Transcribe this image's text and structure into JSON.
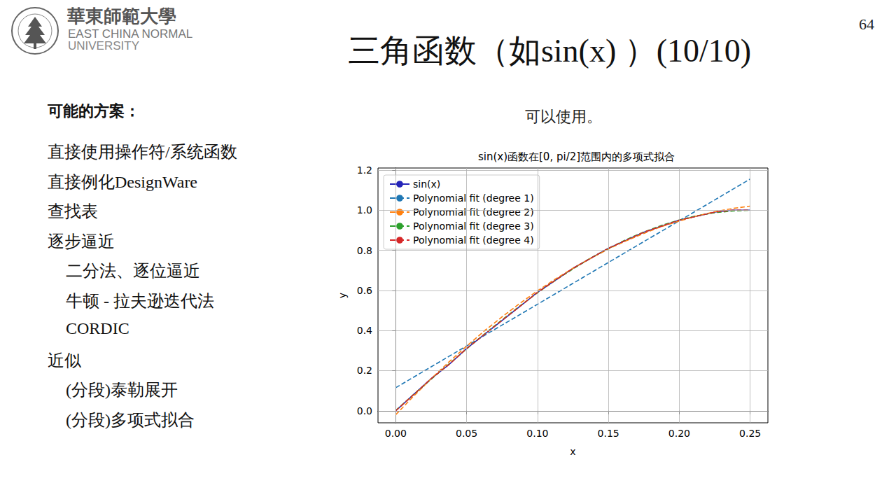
{
  "slide": {
    "logo": [
      "華東師範大學",
      "EAST CHINA NORMAL",
      "UNIVERSITY"
    ],
    "page_number": "64",
    "title": "三角函数（如sin(x) ）(10/10)",
    "list_heading": "可能的方案：",
    "list": [
      {
        "text": "直接使用操作符/系统函数"
      },
      {
        "text": "直接例化DesignWare"
      },
      {
        "text": "查找表"
      },
      {
        "text": "逐步逼近",
        "items": [
          "二分法、逐位逼近",
          "牛顿 - 拉夫逊迭代法",
          "CORDIC"
        ]
      },
      {
        "text": "近似",
        "items": [
          "(分段)泰勒展开",
          "(分段)多项式拟合"
        ]
      }
    ],
    "caption": "可以使用。"
  },
  "chart_data": {
    "type": "line",
    "title": "sin(x)函数在[0, pi/2]范围内的多项式拟合",
    "x_label": "x",
    "y_label": "y",
    "x": [
      0,
      0.0125,
      0.025,
      0.0375,
      0.05,
      0.0625,
      0.075,
      0.0875,
      0.1,
      0.1125,
      0.125,
      0.1375,
      0.15,
      0.1625,
      0.175,
      0.1875,
      0.2,
      0.2125,
      0.225,
      0.2375,
      0.25
    ],
    "series": [
      {
        "name": "sin(x)",
        "color": "#2424b8",
        "line_style": "solid",
        "values": [
          0,
          0.08,
          0.16,
          0.23,
          0.31,
          0.38,
          0.45,
          0.52,
          0.59,
          0.65,
          0.71,
          0.76,
          0.81,
          0.85,
          0.89,
          0.92,
          0.95,
          0.97,
          0.99,
          1.0,
          1.0
        ]
      },
      {
        "name": "Polynomial fit (degree 1)",
        "color": "#1f77b4",
        "line_style": "dashed",
        "values": [
          0.115,
          0.167,
          0.219,
          0.271,
          0.323,
          0.375,
          0.427,
          0.479,
          0.531,
          0.583,
          0.635,
          0.687,
          0.739,
          0.791,
          0.843,
          0.895,
          0.947,
          0.999,
          1.051,
          1.103,
          1.155
        ]
      },
      {
        "name": "Polynomial fit (degree 2)",
        "color": "#ff7f0e",
        "line_style": "dashed",
        "values": [
          -0.02,
          0.072,
          0.16,
          0.243,
          0.322,
          0.398,
          0.468,
          0.535,
          0.598,
          0.656,
          0.71,
          0.76,
          0.806,
          0.847,
          0.884,
          0.918,
          0.946,
          0.971,
          0.992,
          1.008,
          1.02
        ]
      },
      {
        "name": "Polynomial fit (degree 3)",
        "color": "#2ca02c",
        "line_style": "dashed",
        "values": [
          0.002,
          0.08,
          0.157,
          0.233,
          0.308,
          0.382,
          0.453,
          0.522,
          0.588,
          0.65,
          0.707,
          0.761,
          0.809,
          0.853,
          0.891,
          0.924,
          0.951,
          0.972,
          0.987,
          0.996,
          0.999
        ]
      },
      {
        "name": "Polynomial fit (degree 4)",
        "color": "#d62728",
        "line_style": "dashed",
        "values": [
          0,
          0.08,
          0.16,
          0.23,
          0.31,
          0.38,
          0.45,
          0.52,
          0.59,
          0.65,
          0.71,
          0.76,
          0.81,
          0.85,
          0.89,
          0.92,
          0.95,
          0.97,
          0.99,
          1.0,
          1.0
        ]
      }
    ],
    "xlim": [
      -0.0125,
      0.2625
    ],
    "ylim": [
      -0.06,
      1.21
    ],
    "xticks": [
      {
        "value": 0,
        "label": "0.00"
      },
      {
        "value": 0.05,
        "label": "0.05"
      },
      {
        "value": 0.1,
        "label": "0.10"
      },
      {
        "value": 0.15,
        "label": "0.15"
      },
      {
        "value": 0.2,
        "label": "0.20"
      },
      {
        "value": 0.25,
        "label": "0.25"
      }
    ],
    "yticks": [
      {
        "value": 0,
        "label": "0.0"
      },
      {
        "value": 0.2,
        "label": "0.2"
      },
      {
        "value": 0.4,
        "label": "0.4"
      },
      {
        "value": 0.6,
        "label": "0.6"
      },
      {
        "value": 0.8,
        "label": "0.8"
      },
      {
        "value": 1,
        "label": "1.0"
      },
      {
        "value": 1.2,
        "label": "1.2"
      }
    ],
    "grid": true,
    "legend": "upper left"
  }
}
